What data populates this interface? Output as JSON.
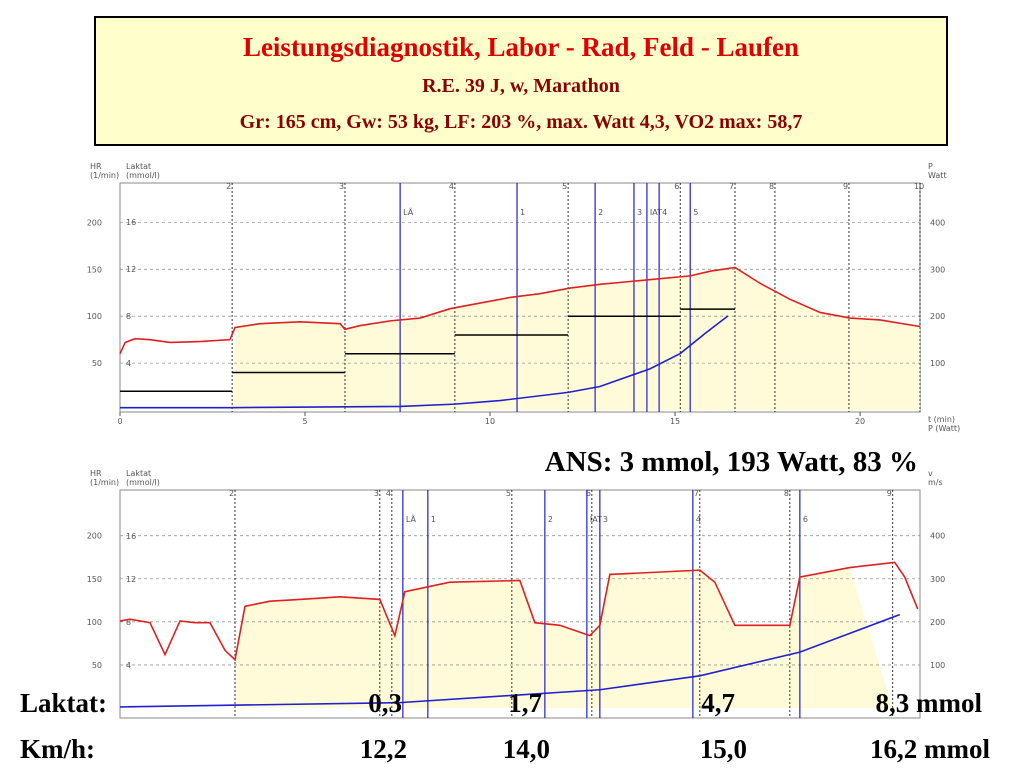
{
  "header": {
    "title": "Leistungsdiagnostik, Labor - Rad, Feld - Laufen",
    "subtitle": "R.E. 39 J, w, Marathon",
    "details": "Gr: 165 cm, Gw: 53 kg, LF: 203 %, max. Watt 4,3, VO2 max: 58,7"
  },
  "ans": "ANS: 3 mmol, 193 Watt,  83 %",
  "laktat_row": {
    "label": "Laktat:",
    "values": [
      "0,3",
      "1,7",
      "4,7",
      "8,3 mmol"
    ]
  },
  "kmh_row": {
    "label": "Km/h:",
    "values": [
      "12,2",
      "14,0",
      "15,0",
      "16,2 mmol"
    ]
  },
  "chart_data": [
    {
      "type": "line",
      "y_label": "HR",
      "y_unit": "(1/min)",
      "y2_label": "Laktat",
      "y2_unit": "(mmol/l)",
      "y3_label": "P",
      "y3_unit": "Watt",
      "x_label": "t (min)",
      "x2_label": "P (Watt)",
      "xlim": [
        0,
        21.62
      ],
      "xticks": [
        0,
        5,
        10,
        15,
        20
      ],
      "ylim": [
        0,
        242
      ],
      "yticks": [
        50,
        100,
        150,
        200
      ],
      "y2lim": [
        0,
        19.3
      ],
      "y2ticks": [
        4,
        8,
        12,
        16
      ],
      "y3lim": [
        0,
        484
      ],
      "y3ticks": [
        100,
        200,
        300,
        400
      ],
      "series": [
        {
          "name": "HR",
          "color": "#e02020",
          "x": [
            0,
            0.14,
            0.41,
            0.81,
            1.35,
            2.16,
            2.97,
            3.11,
            3.78,
            4.86,
            5.95,
            6.08,
            6.49,
            7.3,
            8.11,
            8.92,
            9.73,
            10.54,
            11.35,
            12.16,
            12.97,
            13.78,
            14.59,
            15.41,
            15.95,
            16.62,
            17.3,
            18.11,
            18.92,
            19.73,
            20.54,
            21.62
          ],
          "values": [
            60,
            72,
            76,
            75,
            72,
            73,
            75,
            88,
            92,
            94,
            92,
            86,
            90,
            95,
            98,
            108,
            114,
            120,
            124,
            130,
            134,
            137,
            140,
            143,
            148,
            152,
            135,
            118,
            104,
            98,
            96,
            89
          ]
        },
        {
          "name": "Laktat",
          "color": "#2020d0",
          "axis": "y2",
          "x": [
            0,
            2.97,
            7.57,
            9.05,
            10.27,
            12.11,
            12.97,
            14.32,
            15.14,
            15.81,
            16.43
          ],
          "values": [
            0.2,
            0.2,
            0.3,
            0.5,
            0.8,
            1.5,
            2,
            3.5,
            4.8,
            6.5,
            8
          ]
        }
      ],
      "stages": {
        "bins": [
          0,
          3.03,
          6.08,
          9.05,
          12.11,
          15.14,
          16.62
        ],
        "values": [
          40,
          80,
          120,
          160,
          200,
          215
        ],
        "axis": "y3"
      },
      "markers": [
        {
          "x": 3.03,
          "label": "2"
        },
        {
          "x": 6.08,
          "label": "3"
        },
        {
          "x": 9.05,
          "label": "4"
        },
        {
          "x": 12.11,
          "label": "5"
        },
        {
          "x": 15.14,
          "label": "6"
        },
        {
          "x": 16.62,
          "label": "7"
        },
        {
          "x": 17.7,
          "label": "8"
        },
        {
          "x": 19.7,
          "label": "9"
        },
        {
          "x": 21.62,
          "label": "10"
        }
      ],
      "thresholds": [
        {
          "x": 7.57,
          "label": "LÄ"
        },
        {
          "x": 10.73,
          "label": "1"
        },
        {
          "x": 12.84,
          "label": "2"
        },
        {
          "x": 13.89,
          "label": "3"
        },
        {
          "x": 14.24,
          "label": "IAT"
        },
        {
          "x": 14.57,
          "label": "4"
        },
        {
          "x": 15.41,
          "label": "5"
        }
      ]
    },
    {
      "type": "line",
      "y_label": "HR",
      "y_unit": "(1/min)",
      "y2_label": "Laktat",
      "y2_unit": "(mmol/l)",
      "y3_label": "v",
      "y3_unit": "m/s",
      "xlim": [
        0,
        56
      ],
      "ylim": [
        0,
        253
      ],
      "yticks": [
        50,
        100,
        150,
        200
      ],
      "y2lim": [
        0,
        20.3
      ],
      "y2ticks": [
        4,
        8,
        12,
        16
      ],
      "y3lim": [
        0,
        506
      ],
      "y3ticks": [
        100,
        200,
        300,
        400
      ],
      "series": [
        {
          "name": "HR",
          "color": "#e02020",
          "x": [
            0,
            0.7,
            2.1,
            3.15,
            4.2,
            5.25,
            6.3,
            7.35,
            8.05,
            8.75,
            10.5,
            12.6,
            15.39,
            18.19,
            19.24,
            19.94,
            23.09,
            27.99,
            29.04,
            30.79,
            32.89,
            33.59,
            34.29,
            40.59,
            41.64,
            43.04,
            46.89,
            47.59,
            51.08,
            54.23,
            54.93,
            55.84
          ],
          "values": [
            101,
            103,
            99,
            62,
            101,
            99,
            99,
            67,
            56,
            118,
            124,
            126,
            129,
            126,
            84,
            135,
            146,
            148,
            99,
            96,
            84,
            96,
            155,
            160,
            146,
            96,
            96,
            152,
            163,
            169,
            152,
            115
          ]
        },
        {
          "name": "Laktat",
          "color": "#2020d0",
          "axis": "y2",
          "x": [
            0,
            19.59,
            33.59,
            40.59,
            47.59,
            54.58
          ],
          "values": [
            0.1,
            0.5,
            1.7,
            3,
            5.2,
            8.7
          ]
        }
      ],
      "markers": [
        {
          "x": 8.05,
          "label": "2"
        },
        {
          "x": 18.19,
          "label": "3"
        },
        {
          "x": 19.03,
          "label": "4"
        },
        {
          "x": 27.43,
          "label": "5"
        },
        {
          "x": 33.03,
          "label": "6"
        },
        {
          "x": 40.59,
          "label": "7"
        },
        {
          "x": 46.89,
          "label": "8"
        },
        {
          "x": 54.09,
          "label": "9"
        }
      ],
      "thresholds": [
        {
          "x": 19.8,
          "label": "LÄ"
        },
        {
          "x": 21.55,
          "label": "1"
        },
        {
          "x": 29.74,
          "label": "2"
        },
        {
          "x": 32.68,
          "label": "IAT"
        },
        {
          "x": 33.59,
          "label": "3"
        },
        {
          "x": 40.1,
          "label": "4"
        },
        {
          "x": 47.59,
          "label": "6"
        }
      ]
    }
  ]
}
